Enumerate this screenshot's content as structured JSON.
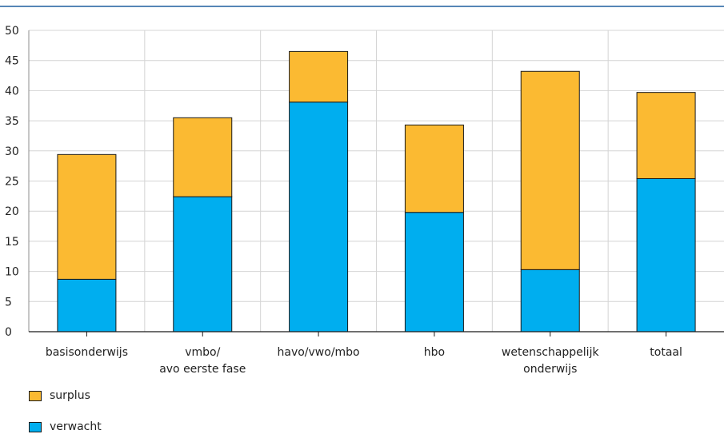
{
  "chart_data": {
    "type": "bar",
    "stacked": true,
    "categories": [
      [
        "basisonderwijs"
      ],
      [
        "vmbo/",
        "avo eerste fase"
      ],
      [
        "havo/vwo/mbo"
      ],
      [
        "hbo"
      ],
      [
        "wetenschappelijk",
        "onderwijs"
      ],
      [
        "totaal"
      ]
    ],
    "series": [
      {
        "name": "verwacht",
        "color": "#00aeef",
        "values": [
          8.7,
          22.4,
          38.1,
          19.8,
          10.3,
          25.4
        ]
      },
      {
        "name": "surplus",
        "color": "#fbba32",
        "values": [
          20.7,
          13.1,
          8.4,
          14.5,
          32.9,
          14.3
        ]
      }
    ],
    "ylim": [
      0,
      50
    ],
    "yticks": [
      "0",
      "5",
      "10",
      "15",
      "20",
      "25",
      "30",
      "35",
      "40",
      "45",
      "50"
    ],
    "grid": true,
    "legend": [
      {
        "label": "surplus",
        "color": "#fbba32"
      },
      {
        "label": "verwacht",
        "color": "#00aeef"
      }
    ],
    "accent_rule_color": "#1f5e9e"
  }
}
